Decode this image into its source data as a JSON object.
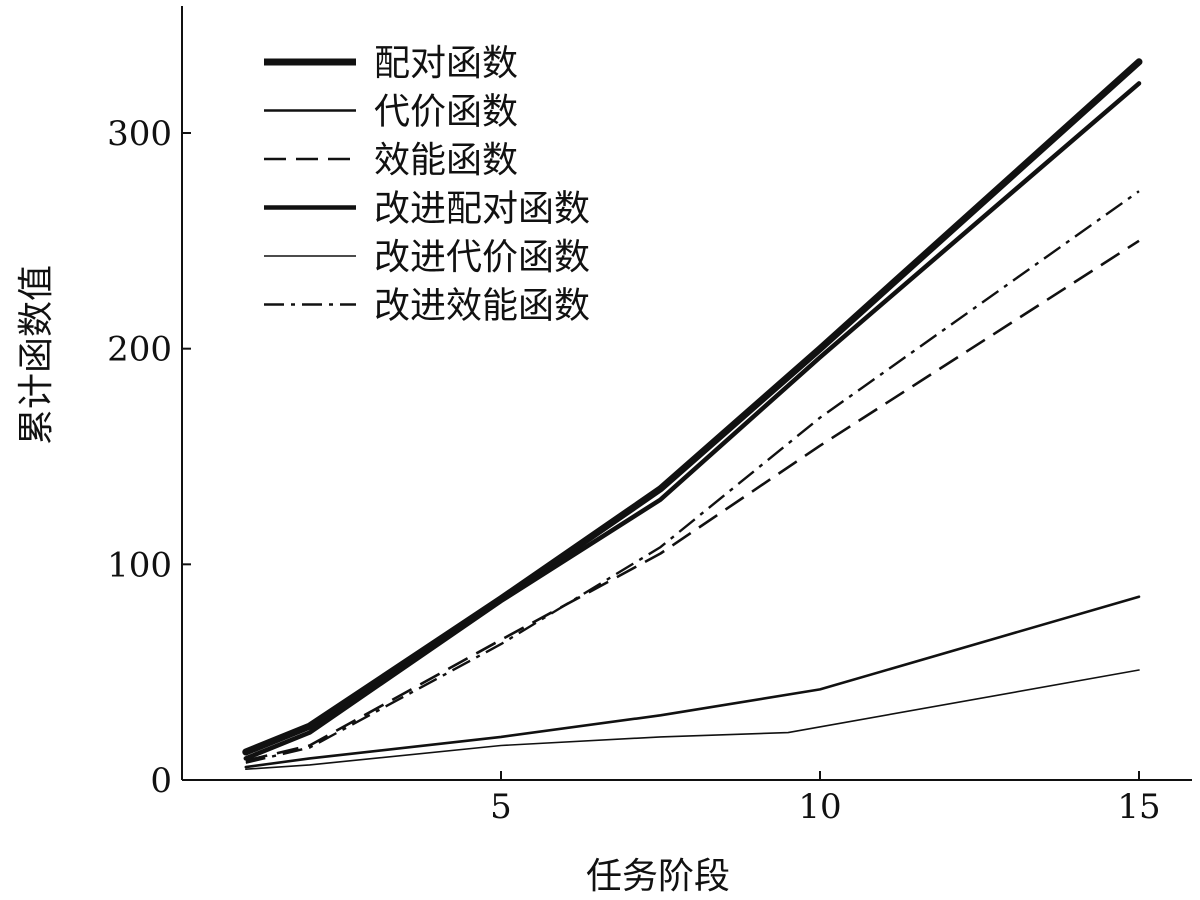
{
  "chart_data": {
    "type": "line",
    "title": "",
    "xlabel": "任务阶段",
    "ylabel": "累计函数值",
    "xlim": [
      0,
      16.5
    ],
    "ylim": [
      0,
      360
    ],
    "xticks": [
      "5",
      "10",
      "15"
    ],
    "yticks": [
      "0",
      "100",
      "200",
      "300"
    ],
    "grid": false,
    "legend": "top-left",
    "series": [
      {
        "name": "配对函数",
        "style": "thick",
        "x": [
          1,
          2,
          5,
          7.5,
          10,
          15
        ],
        "y": [
          13,
          25,
          84,
          135,
          200,
          333
        ]
      },
      {
        "name": "代价函数",
        "style": "thin",
        "x": [
          1,
          2,
          5,
          7.5,
          10,
          15
        ],
        "y": [
          6,
          10,
          20,
          30,
          42,
          85
        ]
      },
      {
        "name": "效能函数",
        "style": "dashed",
        "x": [
          1,
          2,
          5,
          7.5,
          10,
          15
        ],
        "y": [
          9,
          16,
          65,
          105,
          155,
          250
        ]
      },
      {
        "name": "改进配对函数",
        "style": "thick-medium",
        "x": [
          1,
          2,
          5,
          7.5,
          10,
          15
        ],
        "y": [
          10,
          22,
          83,
          130,
          196,
          323
        ]
      },
      {
        "name": "改进代价函数",
        "style": "hairline",
        "x": [
          1,
          2,
          5,
          7.5,
          9.5,
          15
        ],
        "y": [
          5,
          7,
          16,
          20,
          22,
          51
        ]
      },
      {
        "name": "改进效能函数",
        "style": "dashdot",
        "x": [
          1,
          2,
          5,
          7.5,
          10,
          15
        ],
        "y": [
          8,
          15,
          63,
          108,
          168,
          273
        ]
      }
    ]
  }
}
